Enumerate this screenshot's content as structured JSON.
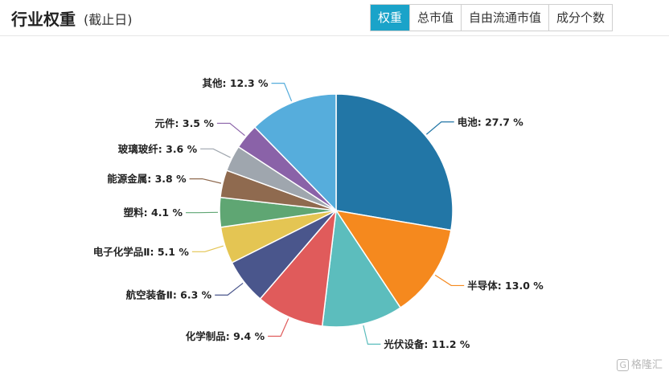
{
  "header": {
    "title": "行业权重",
    "subtitle": "(截止日)",
    "tabs": [
      {
        "label": "权重",
        "active": true
      },
      {
        "label": "总市值",
        "active": false
      },
      {
        "label": "自由流通市值",
        "active": false
      },
      {
        "label": "成分个数",
        "active": false
      }
    ]
  },
  "watermark": {
    "text": "格隆汇",
    "icon": "G"
  },
  "chart_data": {
    "type": "pie",
    "unit": "%",
    "slices": [
      {
        "label": "电池",
        "value": 27.7,
        "color": "#2276a6"
      },
      {
        "label": "半导体",
        "value": 13.0,
        "color": "#f5891e"
      },
      {
        "label": "光伏设备",
        "value": 11.2,
        "color": "#5cbdbd"
      },
      {
        "label": "化学制品",
        "value": 9.4,
        "color": "#e05b5b"
      },
      {
        "label": "航空装备Ⅱ",
        "value": 6.3,
        "color": "#4a568c"
      },
      {
        "label": "电子化学品Ⅱ",
        "value": 5.1,
        "color": "#e4c553"
      },
      {
        "label": "塑料",
        "value": 4.1,
        "color": "#5fa673"
      },
      {
        "label": "能源金属",
        "value": 3.8,
        "color": "#8f6a4f"
      },
      {
        "label": "玻璃玻纤",
        "value": 3.6,
        "color": "#9fa6ae"
      },
      {
        "label": "元件",
        "value": 3.5,
        "color": "#8a62a8"
      },
      {
        "label": "其他",
        "value": 12.3,
        "color": "#56addc"
      }
    ]
  }
}
